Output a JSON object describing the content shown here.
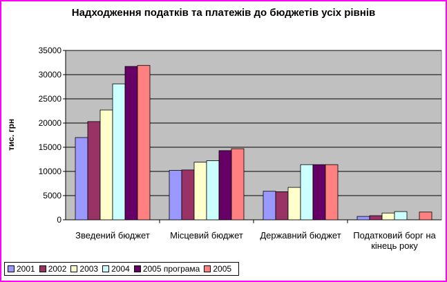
{
  "chart_data": {
    "type": "bar",
    "title": "Надходження податків та платежів до бюджетів усіх рівнів",
    "ylabel": "тис. грн",
    "ylim": [
      0,
      35000
    ],
    "yticks": [
      "0",
      "5000",
      "10000",
      "15000",
      "20000",
      "25000",
      "30000",
      "35000"
    ],
    "grid": true,
    "legend_position": "bottom-left",
    "categories": [
      "Зведений бюджет",
      "Місцевий бюджет",
      "Державний бюджет",
      "Податковий борг на кінець року"
    ],
    "series": [
      {
        "name": "2001",
        "color": "#9999ff",
        "values": [
          17000,
          10200,
          5900,
          700
        ]
      },
      {
        "name": "2002",
        "color": "#993366",
        "values": [
          20300,
          10300,
          5800,
          850
        ]
      },
      {
        "name": "2003",
        "color": "#ffffcc",
        "values": [
          22700,
          11900,
          6700,
          1400
        ]
      },
      {
        "name": "2004",
        "color": "#ccffff",
        "values": [
          28100,
          12200,
          11400,
          1700
        ]
      },
      {
        "name": "2005 програма",
        "color": "#660066",
        "values": [
          31700,
          14300,
          11400,
          null
        ]
      },
      {
        "name": "2005",
        "color": "#ff8080",
        "values": [
          31900,
          14700,
          11400,
          1600
        ]
      }
    ],
    "plot_background": "#c0c0c0"
  }
}
